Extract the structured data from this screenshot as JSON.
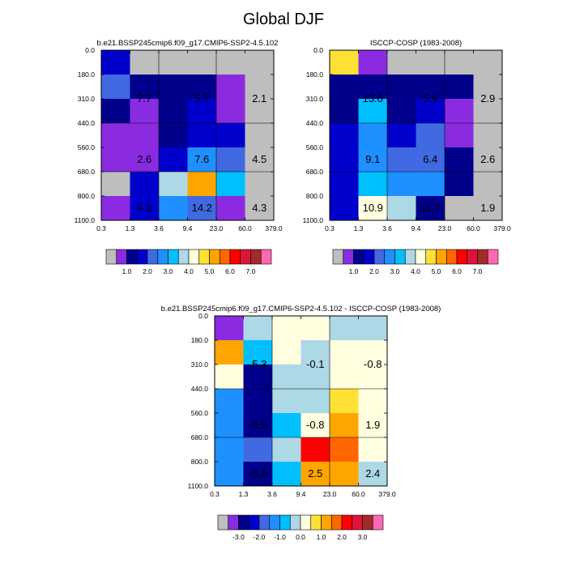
{
  "title": "Global DJF",
  "colors": {
    "missing": "#bebebe",
    "palette": [
      "#8a2be2",
      "#00008b",
      "#0000cd",
      "#4169e1",
      "#1e90ff",
      "#00bfff",
      "#add8e6",
      "#ffffe0",
      "#ffe135",
      "#ffa500",
      "#ff6600",
      "#ff0000",
      "#dc143c",
      "#a52a2a",
      "#ff69b4"
    ]
  },
  "chart_data": [
    {
      "type": "heatmap",
      "title": "b.e21.BSSP245cmip6.f09_g17.CMIP6-SSP2-4.5.102",
      "x_ticks": [
        "0.3",
        "1.3",
        "3.6",
        "9.4",
        "23.0",
        "60.0",
        "379.0"
      ],
      "y_ticks": [
        "0.0",
        "180.0",
        "310.0",
        "440.0",
        "560.0",
        "680.0",
        "800.0",
        "1100.0"
      ],
      "cells": [
        [
          "#0000cd",
          "#bebebe",
          "#bebebe",
          "#bebebe",
          "#bebebe",
          "#bebebe"
        ],
        [
          "#4169e1",
          "#00008b",
          "#00008b",
          "#00008b",
          "#8a2be2",
          "#bebebe"
        ],
        [
          "#00008b",
          "#8a2be2",
          "#00008b",
          "#0000cd",
          "#8a2be2",
          "#bebebe"
        ],
        [
          "#8a2be2",
          "#8a2be2",
          "#00008b",
          "#0000cd",
          "#0000cd",
          "#bebebe"
        ],
        [
          "#8a2be2",
          "#8a2be2",
          "#0000cd",
          "#1e90ff",
          "#4169e1",
          "#bebebe"
        ],
        [
          "#bebebe",
          "#0000cd",
          "#add8e6",
          "#ffa500",
          "#00bfff",
          "#bebebe"
        ],
        [
          "#8a2be2",
          "#0000cd",
          "#1e90ff",
          "#4169e1",
          "#8a2be2",
          "#bebebe"
        ]
      ],
      "annotations": [
        {
          "col": 1,
          "row": 1.5,
          "text": "7.7"
        },
        {
          "col": 3,
          "row": 1.5,
          "text": "5.7"
        },
        {
          "col": 5,
          "row": 1.5,
          "text": "2.1"
        },
        {
          "col": 1,
          "row": 4,
          "text": "2.6"
        },
        {
          "col": 3,
          "row": 4,
          "text": "7.6"
        },
        {
          "col": 5,
          "row": 4,
          "text": "4.5"
        },
        {
          "col": 1,
          "row": 6,
          "text": "4.3"
        },
        {
          "col": 3,
          "row": 6,
          "text": "14.2"
        },
        {
          "col": 5,
          "row": 6,
          "text": "4.3"
        }
      ],
      "legend": {
        "colors": [
          "#bebebe",
          "#8a2be2",
          "#00008b",
          "#0000cd",
          "#4169e1",
          "#1e90ff",
          "#00bfff",
          "#add8e6",
          "#ffffe0",
          "#ffe135",
          "#ffa500",
          "#ff6600",
          "#ff0000",
          "#dc143c",
          "#a52a2a",
          "#ff69b4"
        ],
        "labels": [
          {
            "at": 2,
            "text": "1.0"
          },
          {
            "at": 4,
            "text": "2.0"
          },
          {
            "at": 6,
            "text": "3.0"
          },
          {
            "at": 8,
            "text": "4.0"
          },
          {
            "at": 10,
            "text": "5.0"
          },
          {
            "at": 12,
            "text": "6.0"
          },
          {
            "at": 14,
            "text": "7.0"
          }
        ]
      }
    },
    {
      "type": "heatmap",
      "title": "ISCCP-COSP (1983-2008)",
      "x_ticks": [
        "0.3",
        "1.3",
        "3.6",
        "9.4",
        "23.0",
        "60.0",
        "379.0"
      ],
      "y_ticks": [
        "0.0",
        "180.0",
        "310.0",
        "440.0",
        "560.0",
        "680.0",
        "800.0",
        "1100.0"
      ],
      "cells": [
        [
          "#ffe135",
          "#8a2be2",
          "#bebebe",
          "#bebebe",
          "#bebebe",
          "#bebebe"
        ],
        [
          "#00008b",
          "#00008b",
          "#00008b",
          "#00008b",
          "#00008b",
          "#bebebe"
        ],
        [
          "#00008b",
          "#00bfff",
          "#00008b",
          "#0000cd",
          "#8a2be2",
          "#bebebe"
        ],
        [
          "#0000cd",
          "#1e90ff",
          "#0000cd",
          "#4169e1",
          "#8a2be2",
          "#bebebe"
        ],
        [
          "#0000cd",
          "#1e90ff",
          "#4169e1",
          "#4169e1",
          "#00008b",
          "#bebebe"
        ],
        [
          "#0000cd",
          "#00bfff",
          "#1e90ff",
          "#1e90ff",
          "#00008b",
          "#bebebe"
        ],
        [
          "#0000cd",
          "#ffffe0",
          "#add8e6",
          "#00008b",
          "#bebebe",
          "#bebebe"
        ]
      ],
      "annotations": [
        {
          "col": 1,
          "row": 1.5,
          "text": "13.0"
        },
        {
          "col": 3,
          "row": 1.5,
          "text": "5.9"
        },
        {
          "col": 5,
          "row": 1.5,
          "text": "2.9"
        },
        {
          "col": 1,
          "row": 4,
          "text": "9.1"
        },
        {
          "col": 3,
          "row": 4,
          "text": "6.4"
        },
        {
          "col": 5,
          "row": 4,
          "text": "2.6"
        },
        {
          "col": 1,
          "row": 6,
          "text": "10.9"
        },
        {
          "col": 3,
          "row": 6,
          "text": "11.7"
        },
        {
          "col": 5,
          "row": 6,
          "text": "1.9"
        }
      ],
      "legend": {
        "colors": [
          "#bebebe",
          "#8a2be2",
          "#00008b",
          "#0000cd",
          "#4169e1",
          "#1e90ff",
          "#00bfff",
          "#add8e6",
          "#ffffe0",
          "#ffe135",
          "#ffa500",
          "#ff6600",
          "#ff0000",
          "#dc143c",
          "#a52a2a",
          "#ff69b4"
        ],
        "labels": [
          {
            "at": 2,
            "text": "1.0"
          },
          {
            "at": 4,
            "text": "2.0"
          },
          {
            "at": 6,
            "text": "3.0"
          },
          {
            "at": 8,
            "text": "4.0"
          },
          {
            "at": 10,
            "text": "5.0"
          },
          {
            "at": 12,
            "text": "6.0"
          },
          {
            "at": 14,
            "text": "7.0"
          }
        ]
      }
    },
    {
      "type": "heatmap",
      "title": "b.e21.BSSP245cmip6.f09_g17.CMIP6-SSP2-4.5.102 - ISCCP-COSP (1983-2008)",
      "x_ticks": [
        "0.3",
        "1.3",
        "3.6",
        "9.4",
        "23.0",
        "60.0",
        "379.0"
      ],
      "y_ticks": [
        "0.0",
        "180.0",
        "310.0",
        "440.0",
        "560.0",
        "680.0",
        "800.0",
        "1100.0"
      ],
      "cells": [
        [
          "#8a2be2",
          "#add8e6",
          "#ffffe0",
          "#ffffe0",
          "#add8e6",
          "#add8e6"
        ],
        [
          "#ffa500",
          "#00bfff",
          "#ffffe0",
          "#add8e6",
          "#ffffe0",
          "#ffffe0"
        ],
        [
          "#ffffe0",
          "#00008b",
          "#add8e6",
          "#add8e6",
          "#ffffe0",
          "#ffffe0"
        ],
        [
          "#1e90ff",
          "#00008b",
          "#add8e6",
          "#add8e6",
          "#ffe135",
          "#ffffe0"
        ],
        [
          "#1e90ff",
          "#00008b",
          "#00bfff",
          "#ffffe0",
          "#ffa500",
          "#ffffe0"
        ],
        [
          "#1e90ff",
          "#4169e1",
          "#add8e6",
          "#ff0000",
          "#ff6600",
          "#ffffe0"
        ],
        [
          "#1e90ff",
          "#00008b",
          "#00bfff",
          "#ffa500",
          "#ffa500",
          "#add8e6"
        ]
      ],
      "annotations": [
        {
          "col": 1,
          "row": 1.5,
          "text": "-5.3"
        },
        {
          "col": 3,
          "row": 1.5,
          "text": "-0.1"
        },
        {
          "col": 5,
          "row": 1.5,
          "text": "-0.8"
        },
        {
          "col": 1,
          "row": 4,
          "text": "-6.5"
        },
        {
          "col": 3,
          "row": 4,
          "text": "-0.8"
        },
        {
          "col": 5,
          "row": 4,
          "text": "1.9"
        },
        {
          "col": 1,
          "row": 6,
          "text": "-6.6"
        },
        {
          "col": 3,
          "row": 6,
          "text": "2.5"
        },
        {
          "col": 5,
          "row": 6,
          "text": "2.4"
        }
      ],
      "legend": {
        "colors": [
          "#bebebe",
          "#8a2be2",
          "#00008b",
          "#0000cd",
          "#4169e1",
          "#1e90ff",
          "#00bfff",
          "#add8e6",
          "#ffffe0",
          "#ffe135",
          "#ffa500",
          "#ff6600",
          "#ff0000",
          "#dc143c",
          "#a52a2a",
          "#ff69b4"
        ],
        "labels": [
          {
            "at": 2,
            "text": "-3.0"
          },
          {
            "at": 4,
            "text": "-2.0"
          },
          {
            "at": 6,
            "text": "-1.0"
          },
          {
            "at": 8,
            "text": "0.0"
          },
          {
            "at": 10,
            "text": "1.0"
          },
          {
            "at": 12,
            "text": "2.0"
          },
          {
            "at": 14,
            "text": "3.0"
          }
        ]
      }
    }
  ]
}
